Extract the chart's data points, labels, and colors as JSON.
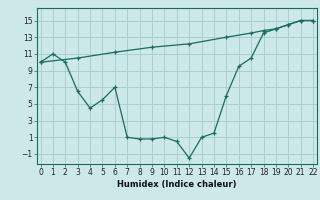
{
  "xlabel": "Humidex (Indice chaleur)",
  "bg_color": "#cce8e8",
  "grid_color": "#aacfcf",
  "line_color": "#1a6b5e",
  "line1_x": [
    0,
    1,
    2,
    3,
    4,
    5,
    6,
    7,
    8,
    9,
    10,
    11,
    12,
    13,
    14,
    15,
    16,
    17,
    18,
    19,
    20,
    21,
    22
  ],
  "line1_y": [
    10,
    11,
    10,
    6.5,
    4.5,
    5.5,
    7,
    1,
    0.8,
    0.8,
    1,
    0.5,
    -1.5,
    1,
    1.5,
    6,
    9.5,
    10.5,
    13.5,
    14,
    14.5,
    15,
    15
  ],
  "line2_x": [
    0,
    3,
    6,
    9,
    12,
    15,
    17,
    18,
    19,
    20,
    21,
    22
  ],
  "line2_y": [
    10,
    10.5,
    11.2,
    11.8,
    12.2,
    13,
    13.5,
    13.8,
    14,
    14.5,
    15,
    15
  ],
  "xlim": [
    -0.3,
    22.3
  ],
  "ylim": [
    -2.2,
    16.5
  ],
  "yticks": [
    -1,
    1,
    3,
    5,
    7,
    9,
    11,
    13,
    15
  ],
  "xticks": [
    0,
    1,
    2,
    3,
    4,
    5,
    6,
    7,
    8,
    9,
    10,
    11,
    12,
    13,
    14,
    15,
    16,
    17,
    18,
    19,
    20,
    21,
    22
  ],
  "tick_fontsize": 5.5,
  "xlabel_fontsize": 6.0
}
